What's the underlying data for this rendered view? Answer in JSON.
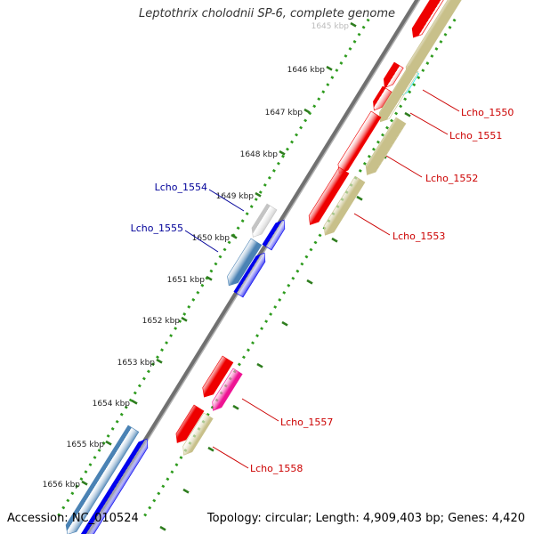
{
  "title": "Leptothrix cholodnii SP-6, complete genome",
  "accession": "Accession: NC_010524",
  "summary": "Topology: circular; Length: 4,909,403 bp; Genes: 4,420",
  "ticks": [
    {
      "label": "1645 kbp"
    },
    {
      "label": "1646 kbp"
    },
    {
      "label": "1647 kbp"
    },
    {
      "label": "1648 kbp"
    },
    {
      "label": "1649 kbp"
    },
    {
      "label": "1650 kbp"
    },
    {
      "label": "1651 kbp"
    },
    {
      "label": "1652 kbp"
    },
    {
      "label": "1653 kbp"
    },
    {
      "label": "1654 kbp"
    },
    {
      "label": "1655 kbp"
    },
    {
      "label": "1656 kbp"
    }
  ],
  "gene_labels": [
    {
      "text": "Lcho_1550",
      "color": "#cc0000"
    },
    {
      "text": "Lcho_1551",
      "color": "#cc0000"
    },
    {
      "text": "Lcho_1552",
      "color": "#cc0000"
    },
    {
      "text": "Lcho_1553",
      "color": "#cc0000"
    },
    {
      "text": "Lcho_1554",
      "color": "#000099"
    },
    {
      "text": "Lcho_1555",
      "color": "#000099"
    },
    {
      "text": "Lcho_1557",
      "color": "#cc0000"
    },
    {
      "text": "Lcho_1558",
      "color": "#cc0000"
    }
  ],
  "colors": {
    "backbone": "#8c8c8c",
    "tick_major": "#2e7d1e",
    "tick_minor": "#2e9b1e",
    "red": "#ee0000",
    "khaki": "#c8c08a",
    "blue": "#0000ee",
    "steel": "#4a82b4",
    "gray_gene": "#c4c4c4",
    "cyan": "#00e5ee",
    "magenta": "#ee1493"
  }
}
